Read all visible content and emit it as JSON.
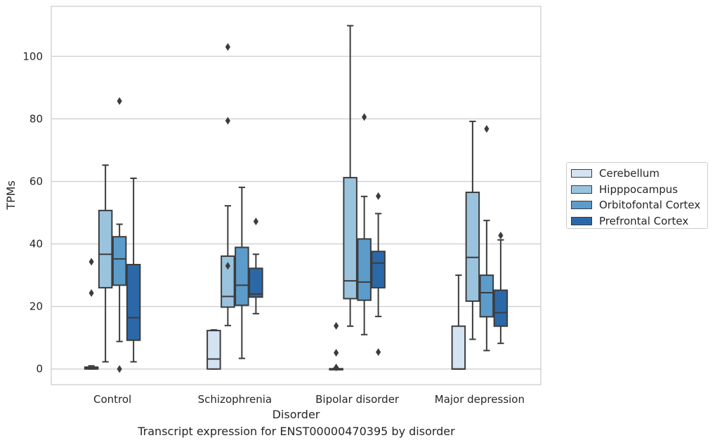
{
  "caption": "Transcript expression for ENST00000470395 by disorder",
  "chart_data": {
    "type": "box",
    "xlabel": "Disorder",
    "ylabel": "TPMs",
    "ylim": [
      -5,
      116
    ],
    "yticks": [
      0,
      20,
      40,
      60,
      80,
      100
    ],
    "grid": "horizontal",
    "legend_position": "right",
    "categories": [
      "Control",
      "Schizophrenia",
      "Bipolar disorder",
      "Major depression"
    ],
    "series": [
      {
        "name": "Cerebellum",
        "color": "#d4e3f2",
        "boxes": [
          {
            "whisker_low": 0,
            "q1": 0,
            "median": 0.3,
            "q3": 0.6,
            "whisker_high": 1,
            "outliers": [
              34.3,
              24.3
            ]
          },
          {
            "whisker_low": 0,
            "q1": 0,
            "median": 3.2,
            "q3": 12.3,
            "whisker_high": 12.5,
            "outliers": []
          },
          {
            "whisker_low": 0,
            "q1": 0,
            "median": 0,
            "q3": 0.1,
            "whisker_high": 0.2,
            "outliers": [
              13.8,
              5.2,
              0.5
            ]
          },
          {
            "whisker_low": 0,
            "q1": 0,
            "median": 0,
            "q3": 13.7,
            "whisker_high": 30,
            "outliers": []
          }
        ]
      },
      {
        "name": "Hipppocampus",
        "color": "#9ac3de",
        "boxes": [
          {
            "whisker_low": 2.3,
            "q1": 26,
            "median": 36.7,
            "q3": 50.7,
            "whisker_high": 65.2,
            "outliers": []
          },
          {
            "whisker_low": 13.9,
            "q1": 19.8,
            "median": 23.2,
            "q3": 36.1,
            "whisker_high": 52.2,
            "outliers": [
              103,
              79.4,
              33
            ]
          },
          {
            "whisker_low": 13.7,
            "q1": 22.5,
            "median": 28.2,
            "q3": 61.2,
            "whisker_high": 109.8,
            "outliers": []
          },
          {
            "whisker_low": 9.5,
            "q1": 21.7,
            "median": 35.7,
            "q3": 56.5,
            "whisker_high": 79.2,
            "outliers": []
          }
        ]
      },
      {
        "name": "Orbitofontal Cortex",
        "color": "#5b9ccb",
        "boxes": [
          {
            "whisker_low": 8.8,
            "q1": 26.8,
            "median": 35.2,
            "q3": 42.3,
            "whisker_high": 46.3,
            "outliers": [
              85.7,
              0
            ]
          },
          {
            "whisker_low": 3.4,
            "q1": 20.4,
            "median": 26.8,
            "q3": 38.9,
            "whisker_high": 58.1,
            "outliers": []
          },
          {
            "whisker_low": 11,
            "q1": 22,
            "median": 27.8,
            "q3": 41.6,
            "whisker_high": 55.2,
            "outliers": [
              80.6
            ]
          },
          {
            "whisker_low": 5.9,
            "q1": 16.7,
            "median": 24.4,
            "q3": 30,
            "whisker_high": 47.5,
            "outliers": [
              76.8
            ]
          }
        ]
      },
      {
        "name": "Prefrontal Cortex",
        "color": "#2b68a8",
        "boxes": [
          {
            "whisker_low": 2.3,
            "q1": 9.2,
            "median": 16.4,
            "q3": 33.4,
            "whisker_high": 61,
            "outliers": []
          },
          {
            "whisker_low": 17.7,
            "q1": 23,
            "median": 24,
            "q3": 32.2,
            "whisker_high": 36.7,
            "outliers": [
              47.2
            ]
          },
          {
            "whisker_low": 16.8,
            "q1": 26,
            "median": 33.9,
            "q3": 37.6,
            "whisker_high": 49.7,
            "outliers": [
              55.3,
              5.4
            ]
          },
          {
            "whisker_low": 8.2,
            "q1": 13.7,
            "median": 18,
            "q3": 25.2,
            "whisker_high": 41.3,
            "outliers": [
              42.7
            ]
          }
        ]
      }
    ]
  }
}
